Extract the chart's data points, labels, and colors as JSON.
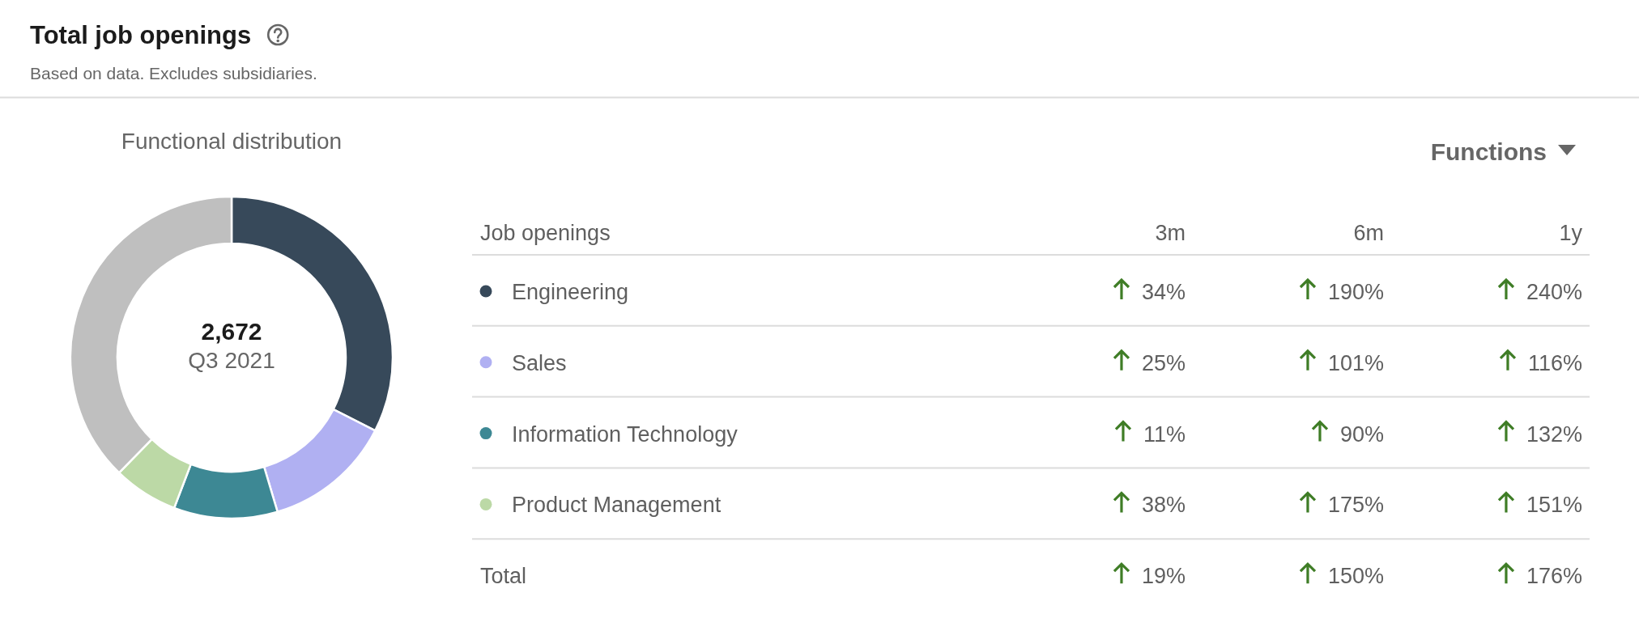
{
  "chart_data": [
    {
      "type": "other",
      "title": "Total job openings",
      "subtitle": "Based on data. Excludes subsidiaries."
    },
    {
      "type": "donut",
      "title": "Functional distribution",
      "categories": [
        null,
        null,
        null,
        null,
        null
      ],
      "values": [
        32.5,
        12.9,
        10.4,
        6.5,
        37.7
      ],
      "colors": [
        "#37495a",
        "#b0b0f2",
        "#3d8894",
        "#bcd9a6",
        "#bfbfbf"
      ],
      "annotations": [
        "2,672",
        "Q3 2021"
      ]
    },
    {
      "type": "other",
      "ylabel": "Job openings",
      "categories": [
        "Engineering",
        "Sales",
        "Information Technology",
        "Product Management",
        "Total"
      ],
      "colors": [
        "#37495a",
        "#b0b0f2",
        "#3d8894",
        "#bcd9a6",
        null
      ],
      "series": [
        {
          "name": "3m",
          "values": [
            34,
            25,
            11,
            38,
            19
          ],
          "value_labels": [
            "34%",
            "25%",
            "11%",
            "38%",
            "19%"
          ]
        },
        {
          "name": "6m",
          "values": [
            190,
            101,
            90,
            175,
            150
          ],
          "value_labels": [
            "190%",
            "101%",
            "90%",
            "175%",
            "150%"
          ]
        },
        {
          "name": "1y",
          "values": [
            240,
            116,
            132,
            151,
            176
          ],
          "value_labels": [
            "240%",
            "116%",
            "132%",
            "151%",
            "176%"
          ]
        }
      ],
      "annotations": [
        "Functions"
      ]
    }
  ]
}
